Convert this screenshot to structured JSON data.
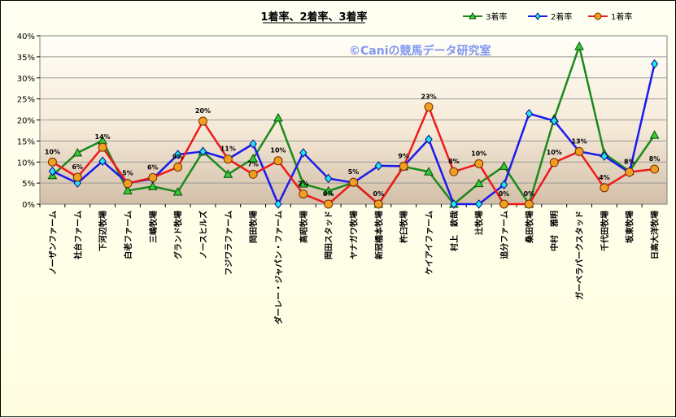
{
  "chart_data": {
    "type": "line",
    "title": "1着率、2着率、3着率",
    "watermark": "©Caniの競馬データ研究室",
    "categories": [
      "ノーザンファーム",
      "社台ファーム",
      "下河辺牧場",
      "白老ファーム",
      "三嶋牧場",
      "グランド牧場",
      "ノースヒルズ",
      "フジワラファーム",
      "岡田牧場",
      "ダーレー・ジャパン・ファーム",
      "高昭牧場",
      "岡田スタッド",
      "ヤナガワ牧場",
      "新冠橋本牧場",
      "杵臼牧場",
      "ケイアイファーム",
      "村上　欽哉",
      "辻牧場",
      "追分ファーム",
      "桑田牧場",
      "中村　雅明",
      "ガーベラパークスタッド",
      "千代田牧場",
      "坂東牧場",
      "日高大洋牧場"
    ],
    "yticks": [
      "0%",
      "5%",
      "10%",
      "15%",
      "20%",
      "25%",
      "30%",
      "35%",
      "40%"
    ],
    "ylim": [
      0,
      40
    ],
    "legend_position": "top-right",
    "series": [
      {
        "name": "3着率",
        "color": "#1a8a1a",
        "marker": "triangle",
        "values": [
          6.8,
          12.2,
          15.1,
          3.2,
          4.2,
          2.9,
          12.5,
          7.1,
          10.8,
          20.5,
          4.8,
          3.1,
          5.1,
          0,
          8.9,
          7.7,
          0,
          4.9,
          9.0,
          0,
          20.3,
          37.5,
          12.0,
          7.8,
          16.4
        ]
      },
      {
        "name": "2着率",
        "color": "#1a1aee",
        "marker": "diamond",
        "values": [
          7.8,
          5.0,
          10.2,
          5.0,
          6.0,
          11.8,
          12.5,
          10.7,
          14.3,
          0,
          12.2,
          6.1,
          5.1,
          9.1,
          9.0,
          15.4,
          0,
          0,
          4.6,
          21.5,
          19.8,
          12.5,
          11.4,
          7.5,
          33.3
        ]
      },
      {
        "name": "1着率",
        "color": "#ee1a1a",
        "marker": "circle",
        "values": [
          10,
          6.4,
          13.5,
          4.9,
          6.3,
          8.8,
          19.7,
          10.7,
          7.1,
          10.3,
          2.4,
          0,
          5.2,
          0,
          9.0,
          23.1,
          7.7,
          9.6,
          0,
          0,
          9.9,
          12.5,
          3.9,
          7.6,
          8.3
        ]
      }
    ],
    "data_labels": [
      "10%",
      "6%",
      "14%",
      "5%",
      "6%",
      "9%",
      "20%",
      "11%",
      "7%",
      "10%",
      "2%",
      "0%",
      "5%",
      "0%",
      "9%",
      "23%",
      "8%",
      "10%",
      "0%",
      "0%",
      "10%",
      "13%",
      "4%",
      "8%",
      "8%"
    ]
  }
}
